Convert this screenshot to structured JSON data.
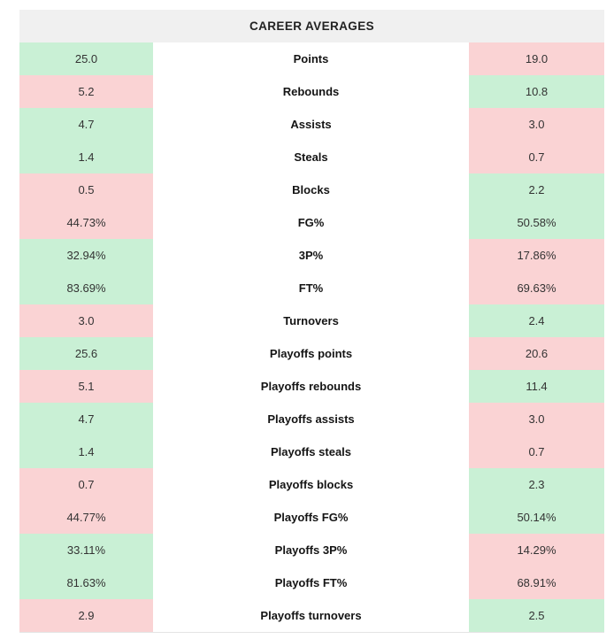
{
  "table": {
    "title": "CAREER AVERAGES",
    "colors": {
      "better_bg": "#c9f0d5",
      "worse_bg": "#fad3d4",
      "header_bg": "#f0f0f0",
      "label_bg": "#ffffff"
    },
    "rows": [
      {
        "label": "Points",
        "left": "25.0",
        "right": "19.0",
        "left_better": true
      },
      {
        "label": "Rebounds",
        "left": "5.2",
        "right": "10.8",
        "left_better": false
      },
      {
        "label": "Assists",
        "left": "4.7",
        "right": "3.0",
        "left_better": true
      },
      {
        "label": "Steals",
        "left": "1.4",
        "right": "0.7",
        "left_better": true
      },
      {
        "label": "Blocks",
        "left": "0.5",
        "right": "2.2",
        "left_better": false
      },
      {
        "label": "FG%",
        "left": "44.73%",
        "right": "50.58%",
        "left_better": false
      },
      {
        "label": "3P%",
        "left": "32.94%",
        "right": "17.86%",
        "left_better": true
      },
      {
        "label": "FT%",
        "left": "83.69%",
        "right": "69.63%",
        "left_better": true
      },
      {
        "label": "Turnovers",
        "left": "3.0",
        "right": "2.4",
        "left_better": false
      },
      {
        "label": "Playoffs points",
        "left": "25.6",
        "right": "20.6",
        "left_better": true
      },
      {
        "label": "Playoffs rebounds",
        "left": "5.1",
        "right": "11.4",
        "left_better": false
      },
      {
        "label": "Playoffs assists",
        "left": "4.7",
        "right": "3.0",
        "left_better": true
      },
      {
        "label": "Playoffs steals",
        "left": "1.4",
        "right": "0.7",
        "left_better": true
      },
      {
        "label": "Playoffs blocks",
        "left": "0.7",
        "right": "2.3",
        "left_better": false
      },
      {
        "label": "Playoffs FG%",
        "left": "44.77%",
        "right": "50.14%",
        "left_better": false
      },
      {
        "label": "Playoffs 3P%",
        "left": "33.11%",
        "right": "14.29%",
        "left_better": true
      },
      {
        "label": "Playoffs FT%",
        "left": "81.63%",
        "right": "68.91%",
        "left_better": true
      },
      {
        "label": "Playoffs turnovers",
        "left": "2.9",
        "right": "2.5",
        "left_better": false
      }
    ]
  }
}
